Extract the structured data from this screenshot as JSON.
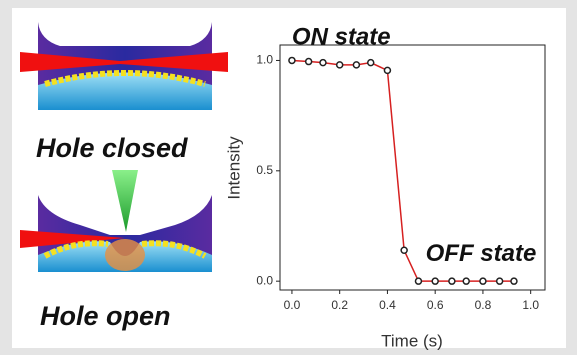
{
  "labels": [
    "Hole closed",
    "Hole open"
  ],
  "chart_data": {
    "type": "line",
    "x": [
      0.0,
      0.07,
      0.13,
      0.2,
      0.27,
      0.33,
      0.4,
      0.47,
      0.53,
      0.6,
      0.67,
      0.73,
      0.8,
      0.87,
      0.93
    ],
    "series": [
      {
        "color": "#d62020",
        "values": [
          1.0,
          0.995,
          0.99,
          0.98,
          0.98,
          0.99,
          0.955,
          0.14,
          0.0,
          0.0,
          0.0,
          0.0,
          0.0,
          0.0,
          0.0
        ]
      }
    ],
    "xlabel": "Time (s)",
    "ylabel": "Intensity",
    "xlim": [
      -0.05,
      1.06
    ],
    "ylim": [
      -0.04,
      1.07
    ],
    "xticks": [
      {
        "value": 0,
        "label": "0.0"
      },
      {
        "value": 0.2,
        "label": "0.2"
      },
      {
        "value": 0.4,
        "label": "0.4"
      },
      {
        "value": 0.6,
        "label": "0.6"
      },
      {
        "value": 0.8,
        "label": "0.8"
      },
      {
        "value": 1,
        "label": "1.0"
      }
    ],
    "yticks": [
      {
        "value": 0,
        "label": "0.0"
      },
      {
        "value": 0.5,
        "label": "0.5"
      },
      {
        "value": 1,
        "label": "1.0"
      }
    ],
    "annotations": [
      {
        "text": "ON state",
        "x": 0.0,
        "y": 1.1
      },
      {
        "text": "OFF state",
        "x": 0.56,
        "y": 0.12
      }
    ]
  }
}
